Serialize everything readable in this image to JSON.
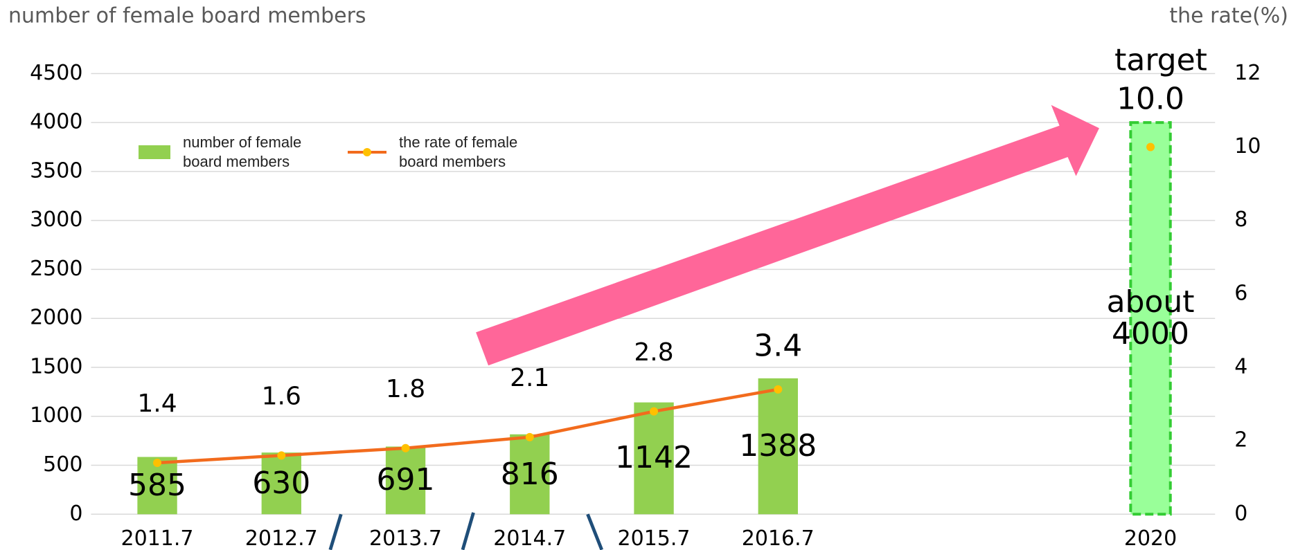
{
  "chart_data": {
    "type": "bar",
    "y_label": "number of female board members",
    "y2_label": "the rate(%)",
    "annotation": "target",
    "categories": [
      "2011.7",
      "2012.7",
      "2013.7",
      "2014.7",
      "2015.7",
      "2016.7",
      null,
      null,
      "2020"
    ],
    "series": [
      {
        "name": "number of female board members",
        "type": "bar",
        "color": "#92d050",
        "colors": [
          "#92d050",
          "#92d050",
          "#92d050",
          "#92d050",
          "#92d050",
          "#92d050",
          null,
          null,
          "#99ff99"
        ],
        "values": [
          585,
          630,
          691,
          816,
          1142,
          1388,
          null,
          null,
          4000
        ],
        "value_labels": [
          "585",
          "630",
          "691",
          "816",
          "1142",
          "1388",
          null,
          null,
          "about 4000"
        ]
      },
      {
        "name": "the rate of female board members",
        "type": "line",
        "axis": "y2",
        "color": "#f26b1d",
        "marker_color": "#ffc000",
        "values": [
          1.4,
          1.6,
          1.8,
          2.1,
          2.8,
          3.4,
          null,
          null,
          10.0
        ],
        "value_labels": [
          "1.4",
          "1.6",
          "1.8",
          "2.1",
          "2.8",
          "3.4",
          null,
          null,
          "10.0"
        ]
      }
    ],
    "ylim": [
      0,
      4500
    ],
    "yticks": [
      0,
      500,
      1000,
      1500,
      2000,
      2500,
      3000,
      3500,
      4000,
      4500
    ],
    "y2lim": [
      0,
      12
    ],
    "y2ticks": [
      0,
      2,
      4,
      6,
      8,
      10,
      12
    ],
    "grid": true,
    "legend": "top-left"
  }
}
